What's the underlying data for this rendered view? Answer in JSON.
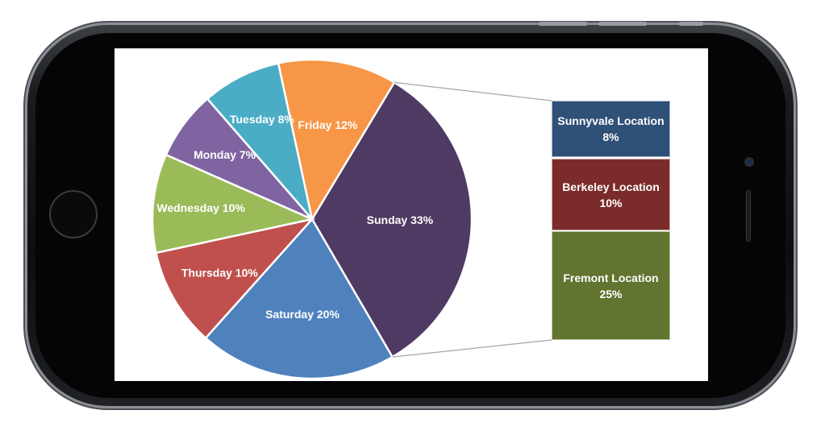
{
  "chart_data": {
    "type": "pie",
    "slices": [
      {
        "label": "Sunday",
        "value": 33,
        "display": "Sunday 33%",
        "color": "#4f3a63"
      },
      {
        "label": "Saturday",
        "value": 20,
        "display": "Saturday 20%",
        "color": "#4f81bd"
      },
      {
        "label": "Thursday",
        "value": 10,
        "display": "Thursday 10%",
        "color": "#c0504d"
      },
      {
        "label": "Wednesday",
        "value": 10,
        "display": "Wednesday 10%",
        "color": "#9bbb59"
      },
      {
        "label": "Monday",
        "value": 7,
        "display": "Monday 7%",
        "color": "#8064a2"
      },
      {
        "label": "Tuesday",
        "value": 8,
        "display": "Tuesday 8%",
        "color": "#4bacc6"
      },
      {
        "label": "Friday",
        "value": 12,
        "display": "Friday 12%",
        "color": "#f79646"
      }
    ],
    "breakdown": {
      "of": "Sunday",
      "items": [
        {
          "line1": "Sunnyvale Location",
          "line2": "8%",
          "value": 8,
          "color": "#2f5077"
        },
        {
          "line1": "Berkeley Location",
          "line2": "10%",
          "value": 10,
          "color": "#7b2c2a"
        },
        {
          "line1": "Fremont Location",
          "line2": "25%",
          "value": 25,
          "color": "#617430"
        }
      ]
    }
  }
}
